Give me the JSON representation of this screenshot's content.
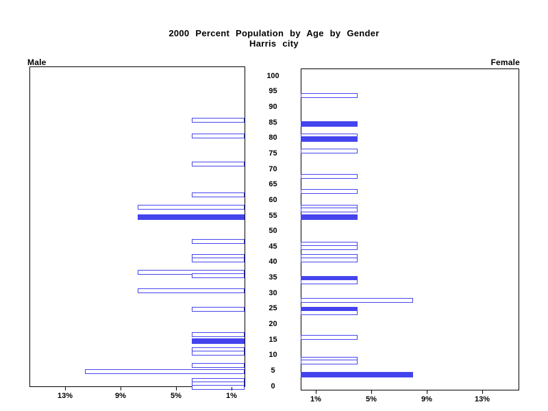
{
  "title": {
    "line1": "2000 Percent Population by Age by Gender",
    "line2": "Harris city"
  },
  "panel_labels": {
    "male": "Male",
    "female": "Female"
  },
  "colors": {
    "bar_blue": "#4444EE",
    "axis": "#000000",
    "background": "#FFFFFF"
  },
  "chart_data": {
    "type": "bar",
    "subtype": "population-pyramid",
    "title": "2000 Percent Population by Age by Gender",
    "subtitle": "Harris city",
    "orientation": "horizontal, male bars grow leftward, female bars grow rightward",
    "unit": "percent of population",
    "age_axis": {
      "min": 0,
      "max": 100,
      "tick_step": 5,
      "tick_labels": [
        "0",
        "5",
        "10",
        "15",
        "20",
        "25",
        "30",
        "35",
        "40",
        "45",
        "50",
        "55",
        "60",
        "65",
        "70",
        "75",
        "80",
        "85",
        "90",
        "95",
        "100"
      ]
    },
    "pct_axis": {
      "max": 15.5,
      "male_ticks": [
        {
          "value": 13,
          "label": "13%"
        },
        {
          "value": 9,
          "label": "9%"
        },
        {
          "value": 5,
          "label": "5%"
        },
        {
          "value": 1,
          "label": "1%"
        }
      ],
      "female_ticks": [
        {
          "value": 1,
          "label": "1%"
        },
        {
          "value": 5,
          "label": "5%"
        },
        {
          "value": 9,
          "label": "9%"
        },
        {
          "value": 13,
          "label": "13%"
        }
      ]
    },
    "series": [
      {
        "name": "Male",
        "side": "left",
        "bars": [
          {
            "age": 86,
            "pct": 3.8,
            "filled": false
          },
          {
            "age": 81,
            "pct": 3.8,
            "filled": false
          },
          {
            "age": 72,
            "pct": 3.8,
            "filled": false
          },
          {
            "age": 62,
            "pct": 3.8,
            "filled": false
          },
          {
            "age": 58,
            "pct": 7.7,
            "filled": false
          },
          {
            "age": 55,
            "pct": 7.7,
            "filled": true
          },
          {
            "age": 47,
            "pct": 3.8,
            "filled": false
          },
          {
            "age": 42,
            "pct": 3.8,
            "filled": false
          },
          {
            "age": 41,
            "pct": 3.8,
            "filled": false
          },
          {
            "age": 37,
            "pct": 7.7,
            "filled": false
          },
          {
            "age": 36,
            "pct": 3.8,
            "filled": false
          },
          {
            "age": 31,
            "pct": 7.7,
            "filled": false
          },
          {
            "age": 25,
            "pct": 3.8,
            "filled": false
          },
          {
            "age": 17,
            "pct": 3.8,
            "filled": false
          },
          {
            "age": 15,
            "pct": 3.8,
            "filled": true
          },
          {
            "age": 12,
            "pct": 3.8,
            "filled": false
          },
          {
            "age": 11,
            "pct": 3.8,
            "filled": false
          },
          {
            "age": 7,
            "pct": 3.8,
            "filled": false
          },
          {
            "age": 5,
            "pct": 11.5,
            "filled": false
          },
          {
            "age": 2,
            "pct": 3.8,
            "filled": false
          },
          {
            "age": 1,
            "pct": 3.8,
            "filled": false
          },
          {
            "age": 0,
            "pct": 3.8,
            "filled": false
          }
        ]
      },
      {
        "name": "Female",
        "side": "right",
        "bars": [
          {
            "age": 94,
            "pct": 4.0,
            "filled": false
          },
          {
            "age": 85,
            "pct": 4.0,
            "filled": true
          },
          {
            "age": 81,
            "pct": 4.0,
            "filled": false
          },
          {
            "age": 80,
            "pct": 4.0,
            "filled": true
          },
          {
            "age": 76,
            "pct": 4.0,
            "filled": false
          },
          {
            "age": 68,
            "pct": 4.0,
            "filled": false
          },
          {
            "age": 63,
            "pct": 4.0,
            "filled": false
          },
          {
            "age": 58,
            "pct": 4.0,
            "filled": false
          },
          {
            "age": 57,
            "pct": 4.0,
            "filled": false
          },
          {
            "age": 55,
            "pct": 4.0,
            "filled": true
          },
          {
            "age": 46,
            "pct": 4.0,
            "filled": false
          },
          {
            "age": 45,
            "pct": 4.0,
            "filled": false
          },
          {
            "age": 42,
            "pct": 4.0,
            "filled": false
          },
          {
            "age": 41,
            "pct": 4.0,
            "filled": false
          },
          {
            "age": 35,
            "pct": 4.0,
            "filled": true
          },
          {
            "age": 34,
            "pct": 4.0,
            "filled": false
          },
          {
            "age": 28,
            "pct": 8.0,
            "filled": false
          },
          {
            "age": 25,
            "pct": 4.0,
            "filled": true
          },
          {
            "age": 24,
            "pct": 4.0,
            "filled": false
          },
          {
            "age": 16,
            "pct": 4.0,
            "filled": false
          },
          {
            "age": 9,
            "pct": 4.0,
            "filled": false
          },
          {
            "age": 8,
            "pct": 4.0,
            "filled": false
          },
          {
            "age": 4,
            "pct": 8.0,
            "filled": true
          }
        ]
      }
    ],
    "legend": "hollow bars = regular age values, solid bars = highlighted age values",
    "grid": false
  }
}
